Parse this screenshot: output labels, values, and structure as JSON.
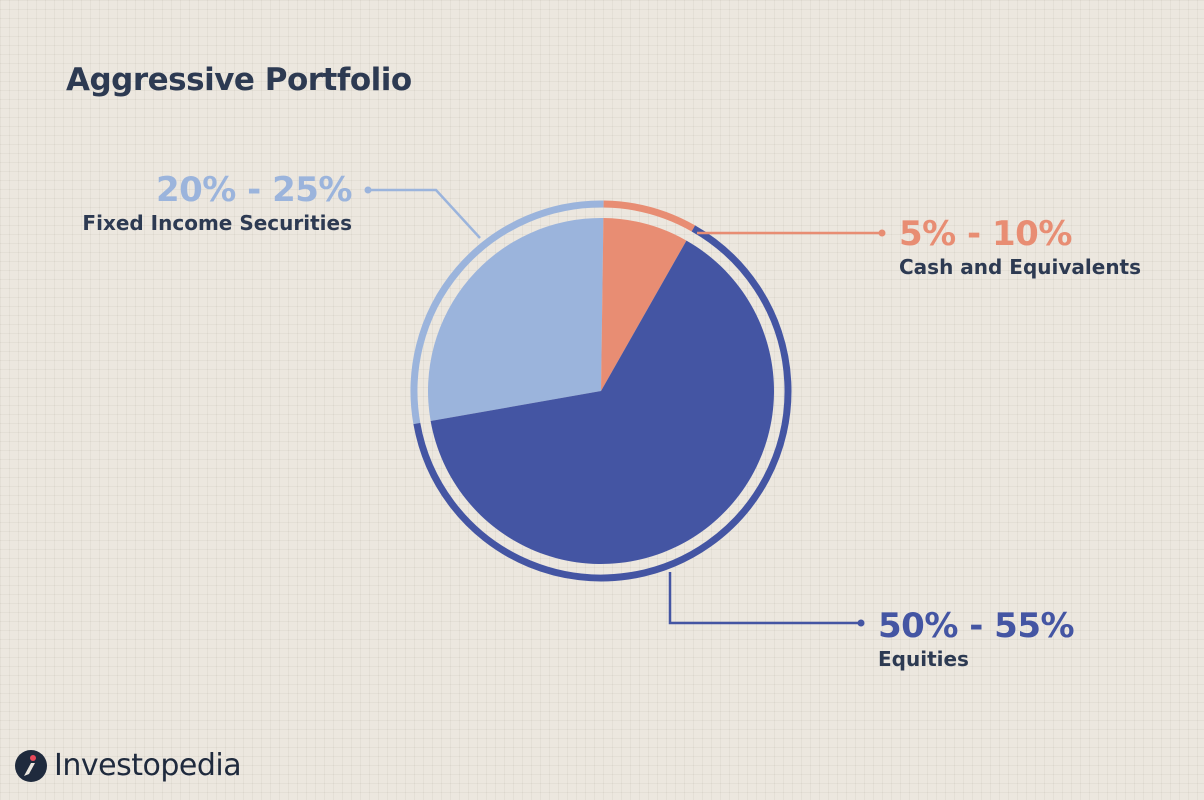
{
  "title": "Aggressive Portfolio",
  "colors": {
    "background": "#ece7df",
    "fixed_income": "#9bb4dc",
    "cash": "#e88d73",
    "equities": "#4455a3",
    "text_dark": "#2d3a52"
  },
  "chart_data": {
    "type": "pie",
    "title": "Aggressive Portfolio",
    "slices": [
      {
        "name": "Fixed Income Securities",
        "range_label": "20% - 25%",
        "value": 28,
        "color": "#9bb4dc"
      },
      {
        "name": "Cash and Equivalents",
        "range_label": "5% - 10%",
        "value": 8,
        "color": "#e88d73"
      },
      {
        "name": "Equities",
        "range_label": "50% - 55%",
        "value": 64,
        "color": "#4455a3"
      }
    ],
    "legend": "callout labels"
  },
  "logo": {
    "text": "Investopedia",
    "icon": "investopedia-logo-icon"
  }
}
